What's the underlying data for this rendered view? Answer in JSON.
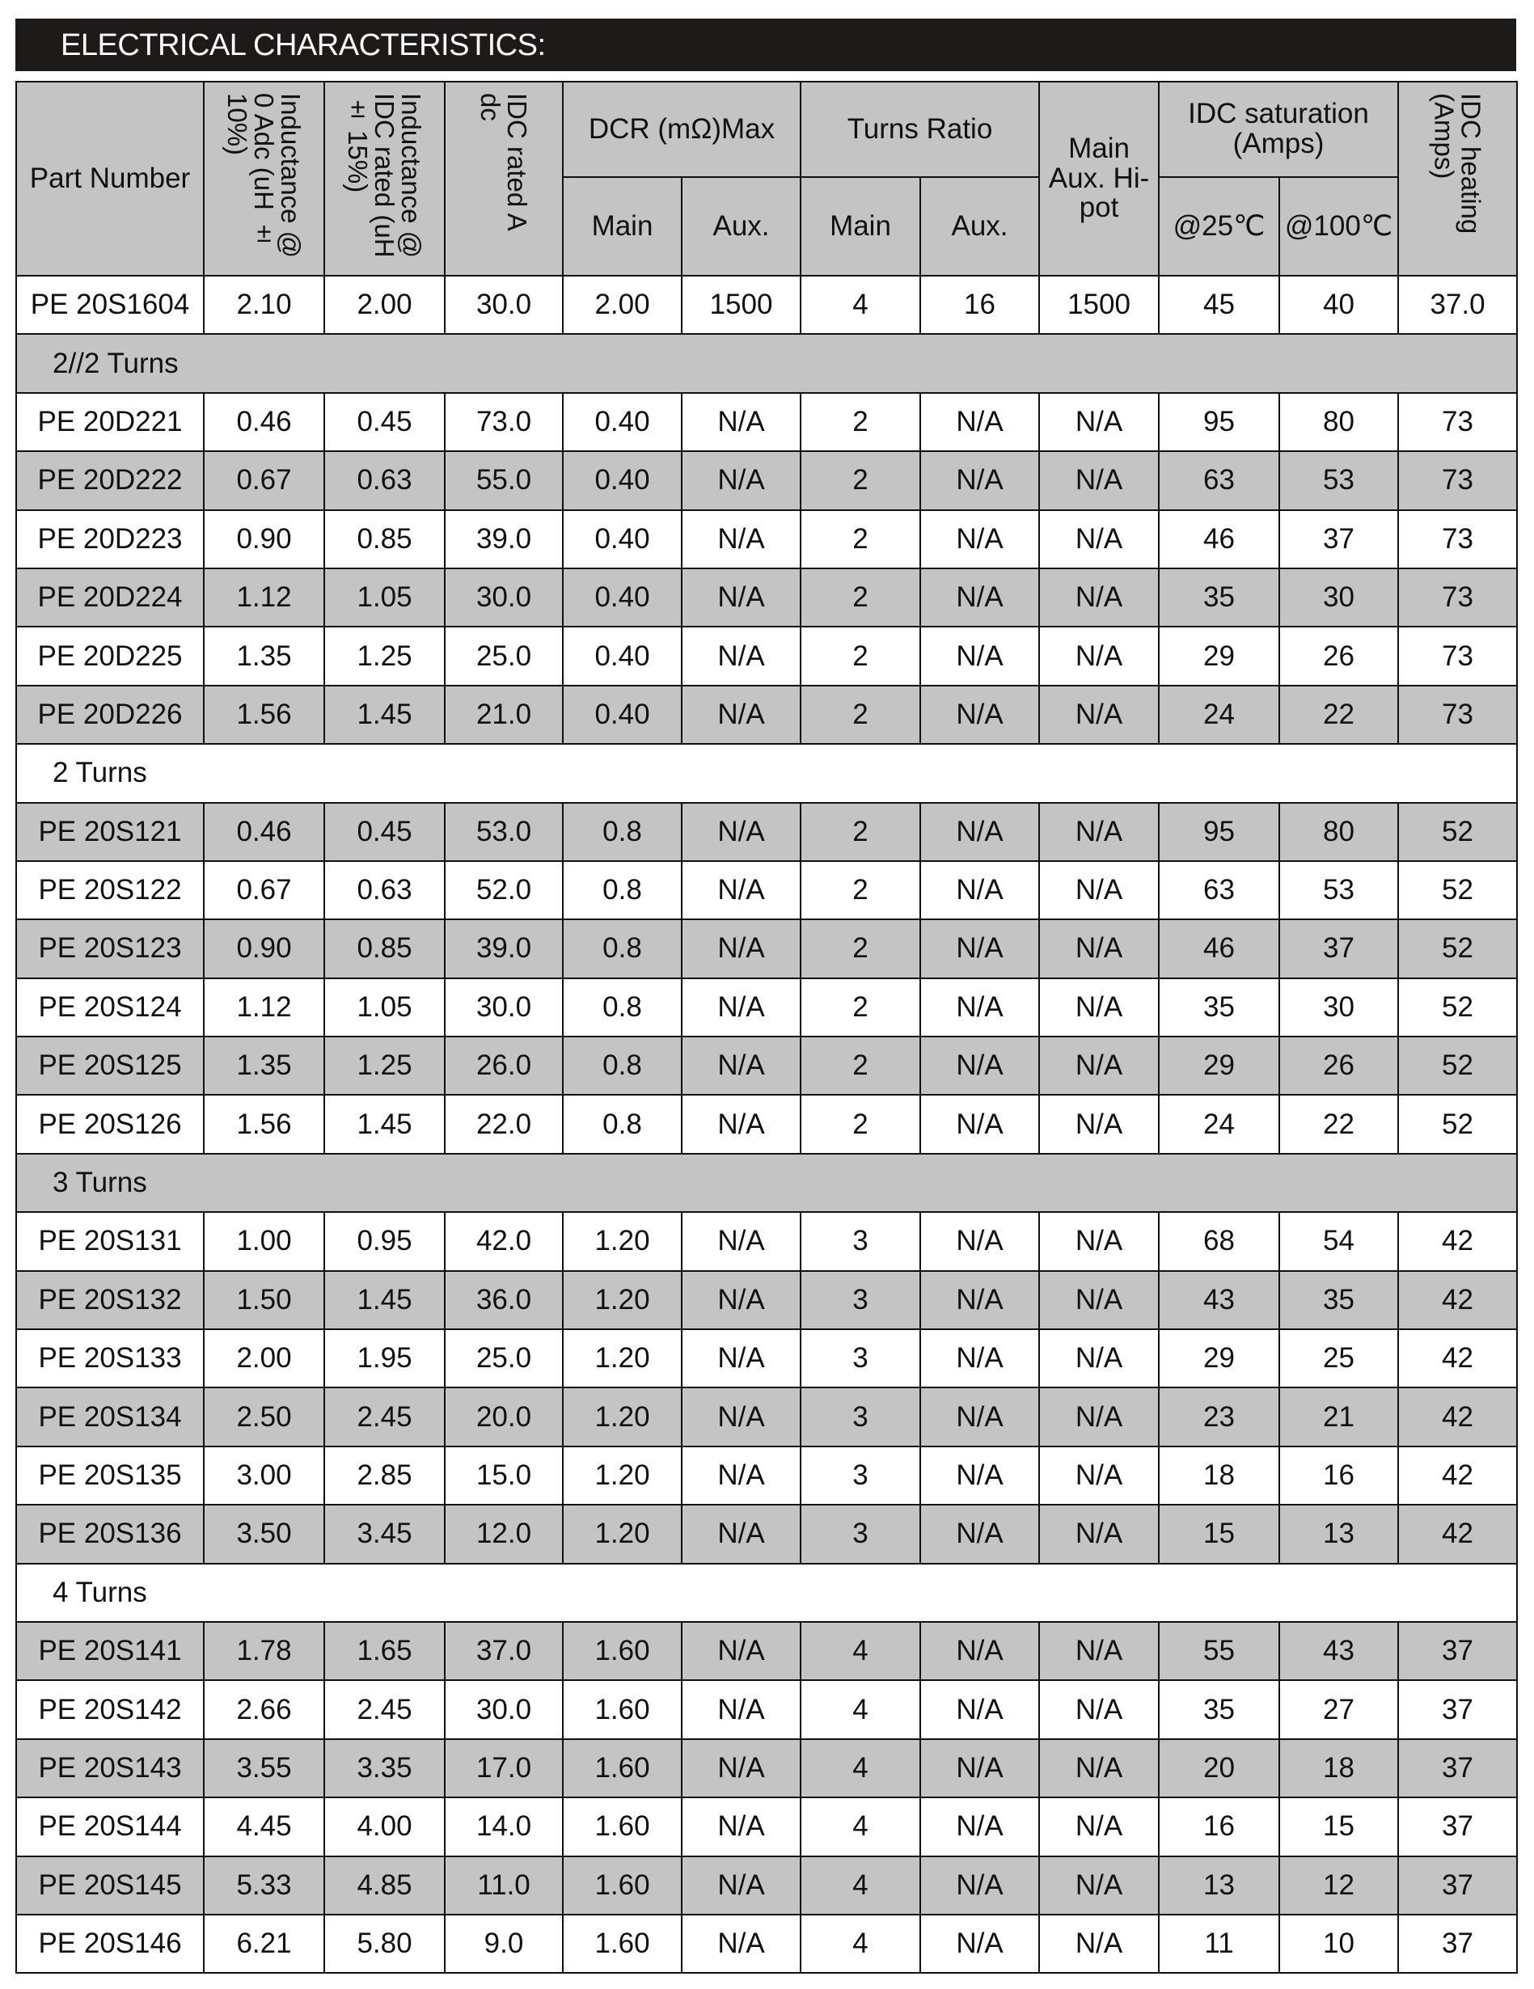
{
  "title": "ELECTRICAL CHARACTERISTICS:",
  "header": {
    "part_number": "Part Number",
    "inductance_0": "Inductance @ 0 Adc (uH ± 10%)",
    "inductance_idc": "Inductance @ IDC rated (uH ± 15%)",
    "idc_rated": "IDC rated A dc",
    "dcr": "DCR (mΩ)Max",
    "turns_ratio": "Turns Ratio",
    "hipot": "Main Aux. Hi-pot",
    "idc_sat": "IDC saturation (Amps)",
    "idc_heating": "IDC heating (Amps)",
    "main": "Main",
    "aux": "Aux.",
    "t25": "@25℃",
    "t100": "@100℃"
  },
  "rows": [
    {
      "cells": [
        "PE 20S1604",
        "2.10",
        "2.00",
        "30.0",
        "2.00",
        "1500",
        "4",
        "16",
        "1500",
        "45",
        "40",
        "37.0"
      ]
    },
    {
      "group": "2//2 Turns"
    },
    {
      "cells": [
        "PE 20D221",
        "0.46",
        "0.45",
        "73.0",
        "0.40",
        "N/A",
        "2",
        "N/A",
        "N/A",
        "95",
        "80",
        "73"
      ]
    },
    {
      "cells": [
        "PE 20D222",
        "0.67",
        "0.63",
        "55.0",
        "0.40",
        "N/A",
        "2",
        "N/A",
        "N/A",
        "63",
        "53",
        "73"
      ]
    },
    {
      "cells": [
        "PE 20D223",
        "0.90",
        "0.85",
        "39.0",
        "0.40",
        "N/A",
        "2",
        "N/A",
        "N/A",
        "46",
        "37",
        "73"
      ]
    },
    {
      "cells": [
        "PE 20D224",
        "1.12",
        "1.05",
        "30.0",
        "0.40",
        "N/A",
        "2",
        "N/A",
        "N/A",
        "35",
        "30",
        "73"
      ]
    },
    {
      "cells": [
        "PE 20D225",
        "1.35",
        "1.25",
        "25.0",
        "0.40",
        "N/A",
        "2",
        "N/A",
        "N/A",
        "29",
        "26",
        "73"
      ]
    },
    {
      "cells": [
        "PE 20D226",
        "1.56",
        "1.45",
        "21.0",
        "0.40",
        "N/A",
        "2",
        "N/A",
        "N/A",
        "24",
        "22",
        "73"
      ]
    },
    {
      "group": "2 Turns"
    },
    {
      "cells": [
        "PE 20S121",
        "0.46",
        "0.45",
        "53.0",
        "0.8",
        "N/A",
        "2",
        "N/A",
        "N/A",
        "95",
        "80",
        "52"
      ]
    },
    {
      "cells": [
        "PE 20S122",
        "0.67",
        "0.63",
        "52.0",
        "0.8",
        "N/A",
        "2",
        "N/A",
        "N/A",
        "63",
        "53",
        "52"
      ]
    },
    {
      "cells": [
        "PE 20S123",
        "0.90",
        "0.85",
        "39.0",
        "0.8",
        "N/A",
        "2",
        "N/A",
        "N/A",
        "46",
        "37",
        "52"
      ]
    },
    {
      "cells": [
        "PE 20S124",
        "1.12",
        "1.05",
        "30.0",
        "0.8",
        "N/A",
        "2",
        "N/A",
        "N/A",
        "35",
        "30",
        "52"
      ]
    },
    {
      "cells": [
        "PE 20S125",
        "1.35",
        "1.25",
        "26.0",
        "0.8",
        "N/A",
        "2",
        "N/A",
        "N/A",
        "29",
        "26",
        "52"
      ]
    },
    {
      "cells": [
        "PE 20S126",
        "1.56",
        "1.45",
        "22.0",
        "0.8",
        "N/A",
        "2",
        "N/A",
        "N/A",
        "24",
        "22",
        "52"
      ]
    },
    {
      "group": "3 Turns"
    },
    {
      "cells": [
        "PE 20S131",
        "1.00",
        "0.95",
        "42.0",
        "1.20",
        "N/A",
        "3",
        "N/A",
        "N/A",
        "68",
        "54",
        "42"
      ]
    },
    {
      "cells": [
        "PE 20S132",
        "1.50",
        "1.45",
        "36.0",
        "1.20",
        "N/A",
        "3",
        "N/A",
        "N/A",
        "43",
        "35",
        "42"
      ]
    },
    {
      "cells": [
        "PE 20S133",
        "2.00",
        "1.95",
        "25.0",
        "1.20",
        "N/A",
        "3",
        "N/A",
        "N/A",
        "29",
        "25",
        "42"
      ]
    },
    {
      "cells": [
        "PE 20S134",
        "2.50",
        "2.45",
        "20.0",
        "1.20",
        "N/A",
        "3",
        "N/A",
        "N/A",
        "23",
        "21",
        "42"
      ]
    },
    {
      "cells": [
        "PE 20S135",
        "3.00",
        "2.85",
        "15.0",
        "1.20",
        "N/A",
        "3",
        "N/A",
        "N/A",
        "18",
        "16",
        "42"
      ]
    },
    {
      "cells": [
        "PE 20S136",
        "3.50",
        "3.45",
        "12.0",
        "1.20",
        "N/A",
        "3",
        "N/A",
        "N/A",
        "15",
        "13",
        "42"
      ]
    },
    {
      "group": "4 Turns"
    },
    {
      "cells": [
        "PE 20S141",
        "1.78",
        "1.65",
        "37.0",
        "1.60",
        "N/A",
        "4",
        "N/A",
        "N/A",
        "55",
        "43",
        "37"
      ]
    },
    {
      "cells": [
        "PE 20S142",
        "2.66",
        "2.45",
        "30.0",
        "1.60",
        "N/A",
        "4",
        "N/A",
        "N/A",
        "35",
        "27",
        "37"
      ]
    },
    {
      "cells": [
        "PE 20S143",
        "3.55",
        "3.35",
        "17.0",
        "1.60",
        "N/A",
        "4",
        "N/A",
        "N/A",
        "20",
        "18",
        "37"
      ]
    },
    {
      "cells": [
        "PE 20S144",
        "4.45",
        "4.00",
        "14.0",
        "1.60",
        "N/A",
        "4",
        "N/A",
        "N/A",
        "16",
        "15",
        "37"
      ]
    },
    {
      "cells": [
        "PE 20S145",
        "5.33",
        "4.85",
        "11.0",
        "1.60",
        "N/A",
        "4",
        "N/A",
        "N/A",
        "13",
        "12",
        "37"
      ]
    },
    {
      "cells": [
        "PE 20S146",
        "6.21",
        "5.80",
        "9.0",
        "1.60",
        "N/A",
        "4",
        "N/A",
        "N/A",
        "11",
        "10",
        "37"
      ]
    }
  ]
}
